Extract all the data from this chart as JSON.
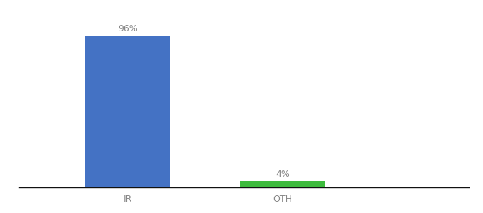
{
  "categories": [
    "IR",
    "OTH"
  ],
  "values": [
    96,
    4
  ],
  "bar_colors": [
    "#4472c4",
    "#3dbb3d"
  ],
  "bar_labels": [
    "96%",
    "4%"
  ],
  "ylim": [
    0,
    108
  ],
  "background_color": "#ffffff",
  "tick_label_color": "#888888",
  "label_fontsize": 9,
  "bar_label_fontsize": 9,
  "bar_width": 0.55,
  "x_positions": [
    1,
    2
  ],
  "xlim": [
    0.3,
    3.2
  ]
}
